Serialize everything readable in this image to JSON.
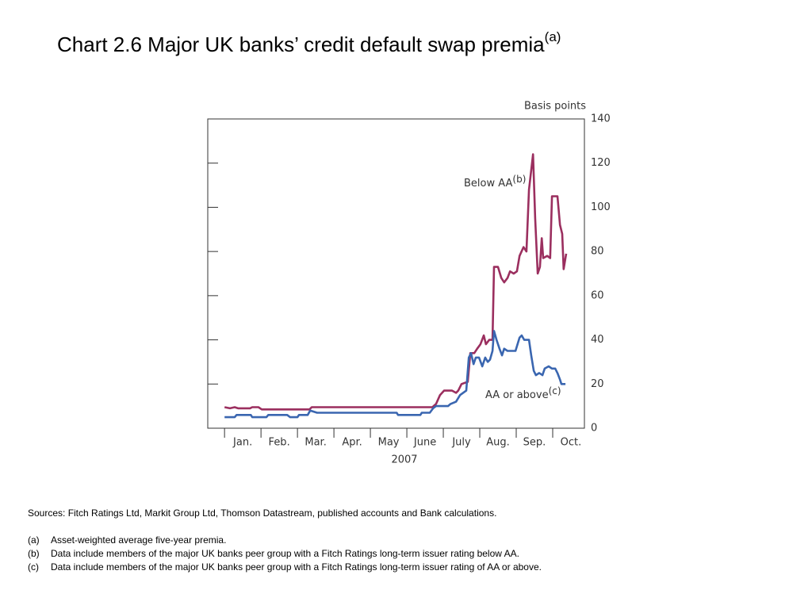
{
  "chart_data": {
    "type": "line",
    "title": "Chart 2.6  Major UK banks’ credit default swap premia",
    "title_note": "(a)",
    "y_label": "Basis points",
    "x_label": "2007",
    "categories": [
      "Jan.",
      "Feb.",
      "Mar.",
      "Apr.",
      "May",
      "June",
      "July",
      "Aug.",
      "Sep.",
      "Oct."
    ],
    "xlim": [
      -0.46,
      9.87
    ],
    "ylim": [
      0,
      140
    ],
    "yticks": [
      0,
      20,
      40,
      60,
      80,
      100,
      120,
      140
    ],
    "series": [
      {
        "name": "Below AA",
        "note": "(b)",
        "color": "#9b2f5f",
        "x": [
          0,
          0.15,
          0.28,
          0.37,
          0.7,
          0.76,
          0.93,
          1.02,
          2.33,
          2.39,
          5.7,
          5.8,
          5.91,
          6.02,
          6.24,
          6.35,
          6.41,
          6.5,
          6.67,
          6.74,
          6.85,
          6.93,
          7.02,
          7.11,
          7.17,
          7.26,
          7.35,
          7.39,
          7.5,
          7.59,
          7.67,
          7.76,
          7.83,
          7.93,
          8.02,
          8.09,
          8.2,
          8.28,
          8.35,
          8.46,
          8.52,
          8.59,
          8.65,
          8.7,
          8.74,
          8.85,
          8.93,
          8.98,
          9.13,
          9.2,
          9.26,
          9.3,
          9.37
        ],
        "values": [
          9.5,
          9,
          9.5,
          9,
          9,
          9.5,
          9.5,
          8.5,
          8.5,
          9.5,
          9.5,
          11,
          15,
          17,
          17,
          16,
          17,
          20,
          21,
          34,
          34,
          36,
          38,
          42,
          38,
          40,
          40,
          73,
          73,
          68,
          66,
          68,
          71,
          70,
          71,
          78,
          82,
          80,
          108,
          124,
          95,
          70,
          73,
          86,
          77,
          78,
          77,
          105,
          105,
          92,
          88,
          72,
          79
        ]
      },
      {
        "name": "AA or above",
        "note": "(c)",
        "color": "#3a66b0",
        "x": [
          0,
          0.28,
          0.33,
          0.72,
          0.76,
          1.15,
          1.2,
          1.72,
          1.8,
          2.0,
          2.04,
          2.28,
          2.35,
          2.54,
          4.72,
          4.76,
          5.37,
          5.41,
          5.63,
          5.72,
          5.8,
          6.13,
          6.2,
          6.35,
          6.46,
          6.63,
          6.7,
          6.76,
          6.83,
          6.89,
          6.98,
          7.07,
          7.15,
          7.22,
          7.28,
          7.35,
          7.39,
          7.46,
          7.54,
          7.61,
          7.67,
          7.76,
          7.85,
          7.98,
          8.09,
          8.15,
          8.22,
          8.28,
          8.35,
          8.41,
          8.48,
          8.54,
          8.63,
          8.72,
          8.78,
          8.89,
          8.98,
          9.07,
          9.13,
          9.2,
          9.24,
          9.35
        ],
        "values": [
          5,
          5,
          6,
          6,
          5,
          5,
          6,
          6,
          5,
          5,
          6,
          6,
          8,
          7,
          7,
          6,
          6,
          7,
          7,
          9,
          10,
          10,
          11,
          12,
          15,
          17,
          32,
          34,
          29,
          32,
          32,
          28,
          32,
          30,
          31,
          35,
          44,
          40,
          36,
          33,
          36,
          35,
          35,
          35,
          41,
          42,
          40,
          40,
          40,
          33,
          26,
          24,
          25,
          24,
          27,
          28,
          27,
          27,
          25,
          22,
          20,
          20
        ]
      }
    ],
    "footnotes": {
      "sources": "Sources:  Fitch Ratings Ltd, Markit Group Ltd, Thomson Datastream, published accounts and Bank calculations.",
      "notes": [
        {
          "marker": "(a)",
          "text": "Asset-weighted average five-year premia."
        },
        {
          "marker": "(b)",
          "text": "Data include members of the major UK banks peer group with a Fitch Ratings long-term issuer rating below AA."
        },
        {
          "marker": "(c)",
          "text": "Data include members of the major UK banks peer group with a Fitch Ratings long-term issuer rating of AA or above."
        }
      ]
    }
  }
}
